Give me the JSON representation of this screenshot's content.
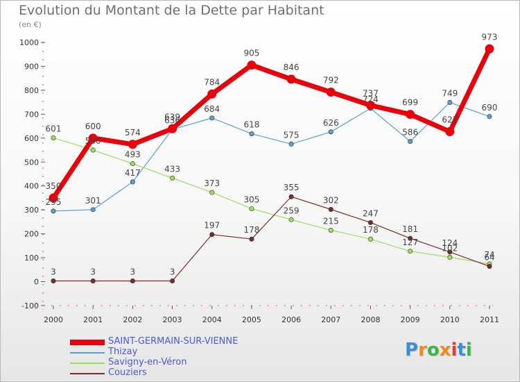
{
  "title": "Evolution du Montant de la Dette par Habitant",
  "subtitle": "(en €)",
  "logo_text": "Proxiti",
  "logo_colors": [
    "#3b8fd6",
    "#f08a1c",
    "#3bb54a",
    "#f08a1c",
    "#e63b2e",
    "#3b8fd6",
    "#3bb54a"
  ],
  "chart_data": {
    "type": "line",
    "title": "Evolution du Montant de la Dette par Habitant",
    "ylabel": "(en €)",
    "xlabel": "",
    "x": [
      "2000",
      "2001",
      "2002",
      "2003",
      "2004",
      "2005",
      "2006",
      "2007",
      "2008",
      "2009",
      "2010",
      "2011"
    ],
    "ylim": [
      -100,
      1000
    ],
    "yticks": [
      -100,
      0,
      100,
      200,
      300,
      400,
      500,
      600,
      700,
      800,
      900,
      1000
    ],
    "grid": false,
    "legend": "bottom-left",
    "series": [
      {
        "name": "SAINT-GERMAIN-SUR-VIENNE",
        "color": "#e8000b",
        "values": [
          350,
          600,
          574,
          639,
          784,
          905,
          846,
          792,
          737,
          699,
          627,
          973
        ]
      },
      {
        "name": "Thizay",
        "color": "#5a9fd0",
        "values": [
          295,
          301,
          417,
          636,
          684,
          618,
          575,
          626,
          724,
          586,
          749,
          690
        ]
      },
      {
        "name": "Savigny-en-Véron",
        "color": "#99e05a",
        "values": [
          601,
          550,
          493,
          433,
          373,
          305,
          259,
          215,
          178,
          127,
          102,
          74
        ]
      },
      {
        "name": "Couziers",
        "color": "#7a2b2b",
        "values": [
          3,
          3,
          3,
          3,
          197,
          178,
          355,
          302,
          247,
          181,
          124,
          64
        ]
      }
    ]
  }
}
